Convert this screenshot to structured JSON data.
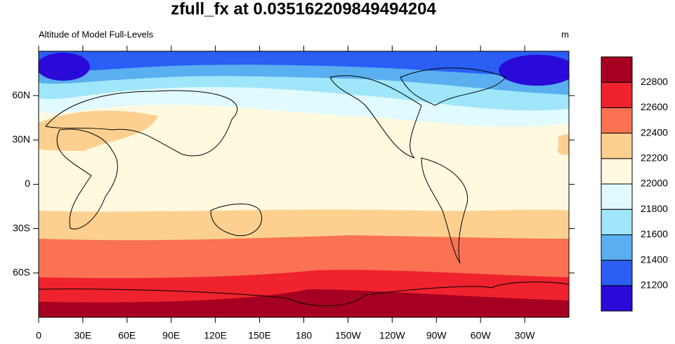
{
  "title": "zfull_fx at 0.035162209849494204",
  "subtitle": "Altitude of Model Full-Levels",
  "units": "m",
  "map": {
    "xlim": [
      0,
      360
    ],
    "ylim": [
      -90,
      90
    ],
    "xticks": [
      0,
      {
        "value": 30,
        "label": "30E"
      },
      {
        "value": 60,
        "label": "60E"
      },
      {
        "value": 90,
        "label": "90E"
      },
      {
        "value": 120,
        "label": "120E"
      },
      {
        "value": 150,
        "label": "150E"
      },
      {
        "value": 180,
        "label": "180"
      },
      {
        "value": 210,
        "label": "150W"
      },
      {
        "value": 240,
        "label": "120W"
      },
      {
        "value": 270,
        "label": "90W"
      },
      {
        "value": 300,
        "label": "60W"
      },
      {
        "value": 330,
        "label": "30W"
      }
    ],
    "yticks": [
      {
        "value": 60,
        "label": "60N"
      },
      {
        "value": 30,
        "label": "30N"
      },
      0,
      {
        "value": -30,
        "label": "30S"
      },
      {
        "value": -60,
        "label": "60S"
      }
    ]
  },
  "colorbar": {
    "levels": [
      21200,
      21400,
      21600,
      21800,
      22000,
      22200,
      22400,
      22600,
      22800
    ],
    "colors": [
      "#2a0ad8",
      "#2a5ef5",
      "#5aaff0",
      "#a0e6fa",
      "#e0fafe",
      "#fff9e0",
      "#fdd090",
      "#fa7252",
      "#f0222e",
      "#a50021"
    ]
  }
}
